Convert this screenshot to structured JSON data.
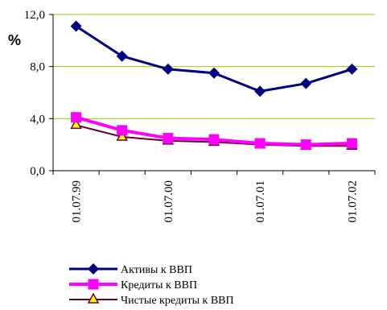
{
  "chart_data": {
    "type": "line",
    "unit_label": "%",
    "ylim": [
      0,
      12
    ],
    "y_ticks": [
      "0,0",
      "4,0",
      "8,0",
      "12,0"
    ],
    "y_tick_values": [
      0,
      4,
      8,
      12
    ],
    "x_tick_labels": [
      "01.07.99",
      "01.07.00",
      "01.07.01",
      "01.07.02"
    ],
    "x_tick_indices": [
      0,
      2,
      4,
      6
    ],
    "grid": "horizontal",
    "legend_position": "bottom",
    "x": [
      "01.07.99",
      "",
      "01.07.00",
      "",
      "01.07.01",
      "",
      "01.07.02"
    ],
    "series": [
      {
        "name": "Активы к ВВП",
        "values": [
          11.1,
          8.8,
          7.8,
          7.5,
          6.1,
          6.7,
          7.8
        ],
        "color": "#000080",
        "marker": "diamond"
      },
      {
        "name": "Кредиты к ВВП",
        "values": [
          4.1,
          3.1,
          2.5,
          2.4,
          2.1,
          2.0,
          2.1
        ],
        "color": "#FF00FF",
        "marker": "square"
      },
      {
        "name": "Чистые кредиты к ВВП",
        "values": [
          3.5,
          2.6,
          2.3,
          2.2,
          2.0,
          1.9,
          1.9
        ],
        "color": "#660033",
        "marker": "triangle",
        "marker_fill": "#FFFF00"
      }
    ]
  }
}
